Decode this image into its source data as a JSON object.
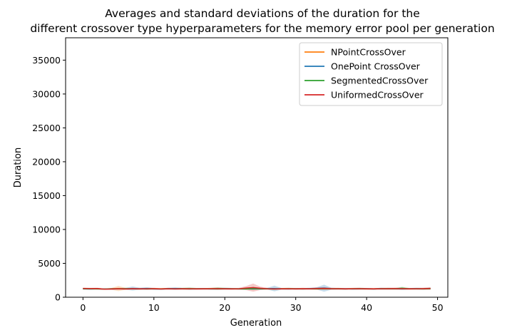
{
  "chart_data": {
    "type": "line",
    "title_line1": "Averages and standard deviations of the duration for the",
    "title_line2": "different crossover type hyperparameters for the memory error pool per generation",
    "xlabel": "Generation",
    "ylabel": "Duration",
    "xlim": [
      -2.45,
      51.45
    ],
    "ylim": [
      0,
      38300
    ],
    "xticks": [
      0,
      10,
      20,
      30,
      40,
      50
    ],
    "yticks": [
      0,
      5000,
      10000,
      15000,
      20000,
      25000,
      30000,
      35000
    ],
    "legend_position": "top-right",
    "x": [
      0,
      1,
      2,
      3,
      4,
      5,
      6,
      7,
      8,
      9,
      10,
      11,
      12,
      13,
      14,
      15,
      16,
      17,
      18,
      19,
      20,
      21,
      22,
      23,
      24,
      25,
      26,
      27,
      28,
      29,
      30,
      31,
      32,
      33,
      34,
      35,
      36,
      37,
      38,
      39,
      40,
      41,
      42,
      43,
      44,
      45,
      46,
      47,
      48,
      49
    ],
    "series": [
      {
        "name": "NPointCrossOver",
        "color": "#ff7f0e",
        "mean": [
          1270,
          1250,
          1260,
          1200,
          1230,
          1290,
          1240,
          1250,
          1260,
          1230,
          1250,
          1240,
          1260,
          1250,
          1240,
          1230,
          1250,
          1240,
          1260,
          1270,
          1250,
          1240,
          1230,
          1250,
          1260,
          1250,
          1240,
          1230,
          1250,
          1240,
          1250,
          1260,
          1240,
          1230,
          1250,
          1240,
          1260,
          1250,
          1240,
          1250,
          1230,
          1240,
          1260,
          1250,
          1240,
          1250,
          1230,
          1240,
          1260,
          1270
        ],
        "std": [
          120,
          100,
          110,
          90,
          130,
          380,
          140,
          110,
          120,
          100,
          110,
          100,
          120,
          110,
          100,
          90,
          110,
          100,
          120,
          130,
          110,
          100,
          90,
          110,
          120,
          110,
          100,
          90,
          110,
          100,
          110,
          120,
          100,
          90,
          110,
          100,
          120,
          110,
          100,
          110,
          90,
          100,
          120,
          110,
          100,
          110,
          90,
          100,
          120,
          130
        ]
      },
      {
        "name": "OnePoint CrossOver",
        "color": "#1f77b4",
        "mean": [
          1240,
          1220,
          1250,
          1210,
          1230,
          1240,
          1250,
          1290,
          1260,
          1280,
          1230,
          1220,
          1260,
          1280,
          1250,
          1230,
          1240,
          1250,
          1230,
          1240,
          1260,
          1250,
          1230,
          1240,
          1250,
          1230,
          1260,
          1290,
          1240,
          1230,
          1250,
          1240,
          1260,
          1300,
          1330,
          1260,
          1240,
          1250,
          1230,
          1240,
          1250,
          1230,
          1260,
          1240,
          1250,
          1230,
          1240,
          1260,
          1250,
          1280
        ],
        "std": [
          110,
          100,
          120,
          90,
          110,
          120,
          130,
          300,
          140,
          200,
          110,
          100,
          130,
          180,
          120,
          100,
          110,
          120,
          100,
          110,
          130,
          120,
          100,
          110,
          120,
          100,
          130,
          420,
          120,
          100,
          120,
          110,
          130,
          180,
          520,
          150,
          110,
          120,
          100,
          110,
          120,
          100,
          130,
          110,
          120,
          100,
          110,
          130,
          120,
          140
        ]
      },
      {
        "name": "SegmentedCrossOver",
        "color": "#2ca02c",
        "mean": [
          1250,
          1240,
          1230,
          1210,
          1240,
          1250,
          1260,
          1240,
          1230,
          1250,
          1240,
          1230,
          1250,
          1240,
          1260,
          1270,
          1250,
          1240,
          1250,
          1270,
          1260,
          1250,
          1240,
          1230,
          1290,
          1250,
          1240,
          1230,
          1250,
          1260,
          1240,
          1230,
          1250,
          1240,
          1260,
          1250,
          1240,
          1230,
          1250,
          1260,
          1240,
          1230,
          1250,
          1260,
          1240,
          1320,
          1250,
          1240,
          1230,
          1260
        ],
        "std": [
          100,
          90,
          100,
          80,
          110,
          120,
          130,
          110,
          100,
          120,
          110,
          100,
          120,
          110,
          130,
          170,
          120,
          110,
          120,
          200,
          130,
          120,
          110,
          100,
          250,
          120,
          110,
          100,
          120,
          130,
          110,
          100,
          120,
          110,
          130,
          120,
          110,
          100,
          120,
          130,
          110,
          100,
          120,
          130,
          110,
          220,
          120,
          110,
          100,
          130
        ]
      },
      {
        "name": "UniformedCrossOver",
        "color": "#d62728",
        "mean": [
          1290,
          1270,
          1280,
          1190,
          1220,
          1250,
          1220,
          1260,
          1230,
          1250,
          1260,
          1220,
          1250,
          1230,
          1240,
          1250,
          1230,
          1240,
          1250,
          1260,
          1240,
          1230,
          1250,
          1350,
          1420,
          1320,
          1250,
          1220,
          1240,
          1250,
          1230,
          1250,
          1240,
          1280,
          1300,
          1260,
          1250,
          1230,
          1250,
          1260,
          1240,
          1230,
          1250,
          1260,
          1270,
          1260,
          1240,
          1250,
          1260,
          1300
        ],
        "std": [
          130,
          110,
          120,
          100,
          120,
          130,
          110,
          140,
          110,
          130,
          140,
          100,
          130,
          110,
          120,
          130,
          110,
          120,
          130,
          140,
          120,
          110,
          130,
          300,
          600,
          250,
          130,
          100,
          120,
          130,
          110,
          130,
          120,
          160,
          200,
          140,
          130,
          110,
          130,
          140,
          120,
          110,
          130,
          140,
          150,
          140,
          120,
          130,
          140,
          160
        ]
      }
    ]
  }
}
